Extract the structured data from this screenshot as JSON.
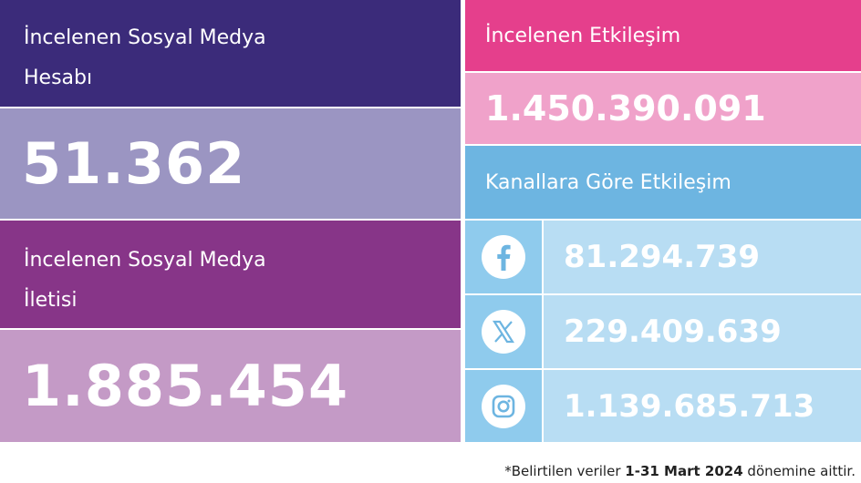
{
  "accounts": {
    "label": "İncelenen Sosyal Medya Hesabı",
    "value": "51.362"
  },
  "posts": {
    "label": "İncelenen Sosyal Medya İletisi",
    "value": "1.885.454"
  },
  "engagement": {
    "label": "İncelenen Etkileşim",
    "value": "1.450.390.091"
  },
  "channels": {
    "label": "Kanallara Göre Etkileşim",
    "rows": [
      "81.294.739",
      "229.409.639",
      "1.139.685.713"
    ]
  },
  "footnote": {
    "before": "*Belirtilen veriler",
    "period": "1-31 Mart 2024",
    "after": "dönemine aittir."
  }
}
